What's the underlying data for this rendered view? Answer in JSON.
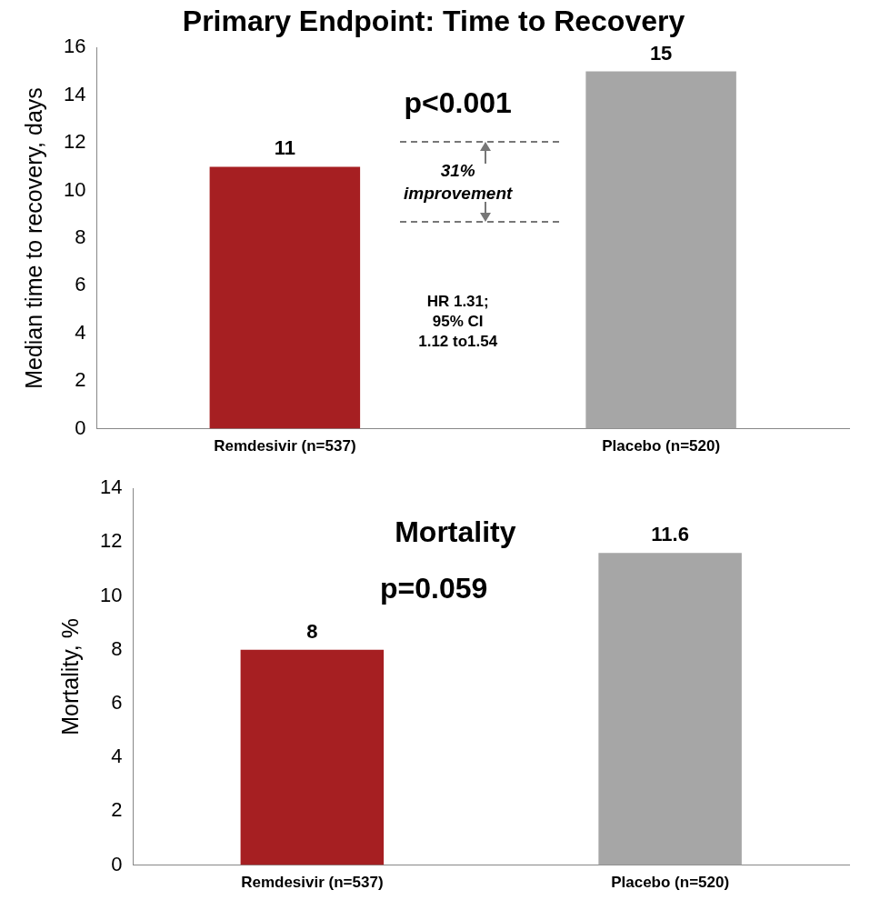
{
  "chart_data": [
    {
      "type": "bar",
      "title": "Primary Endpoint: Time to Recovery",
      "ylabel": "Median time to recovery, days",
      "categories": [
        "Remdesivir (n=537)",
        "Placebo (n=520)"
      ],
      "values": [
        11,
        15
      ],
      "colors": [
        "#a61f22",
        "#a6a6a6"
      ],
      "ylim": [
        0,
        16
      ],
      "yticks": [
        0,
        2,
        4,
        6,
        8,
        10,
        12,
        14,
        16
      ],
      "grid": false,
      "legend": false,
      "data_labels": true,
      "annotations": [
        "p<0.001",
        "31% improvement",
        "HR 1.31; 95% CI 1.12 to1.54"
      ]
    },
    {
      "type": "bar",
      "title": "Mortality",
      "ylabel": "Mortality, %",
      "categories": [
        "Remdesivir (n=537)",
        "Placebo (n=520)"
      ],
      "values": [
        8,
        11.6
      ],
      "colors": [
        "#a61f22",
        "#a6a6a6"
      ],
      "ylim": [
        0,
        14
      ],
      "yticks": [
        0,
        2,
        4,
        6,
        8,
        10,
        12,
        14
      ],
      "grid": false,
      "legend": false,
      "data_labels": true,
      "annotations": [
        "p=0.059"
      ]
    }
  ]
}
